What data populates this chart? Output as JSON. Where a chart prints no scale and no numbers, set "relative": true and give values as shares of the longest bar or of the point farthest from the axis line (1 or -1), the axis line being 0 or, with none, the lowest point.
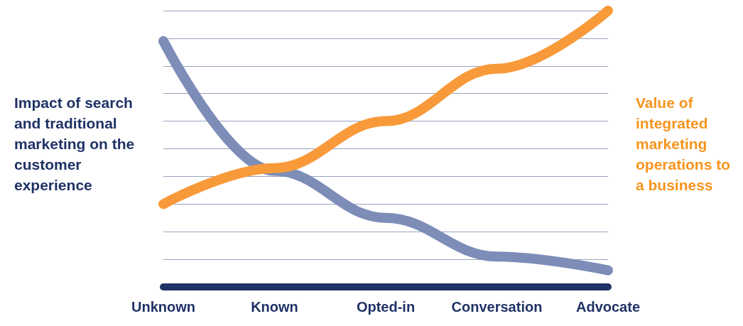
{
  "chart_data": {
    "type": "line",
    "relative": true,
    "ylabel": "Impact of search and traditional marketing on the customer experience",
    "y2label": "Value of integrated marketing operations to a business",
    "categories": [
      "Unknown",
      "Known",
      "Opted-in",
      "Conversation",
      "Advocate"
    ],
    "series": [
      {
        "color": "#7d8db8",
        "values": [
          0.89,
          0.42,
          0.25,
          0.11,
          0.06
        ]
      },
      {
        "color": "#f89a3a",
        "values": [
          0.3,
          0.43,
          0.6,
          0.79,
          1.0
        ]
      }
    ],
    "grid": "y",
    "marker": "none",
    "line_style": "solid"
  }
}
